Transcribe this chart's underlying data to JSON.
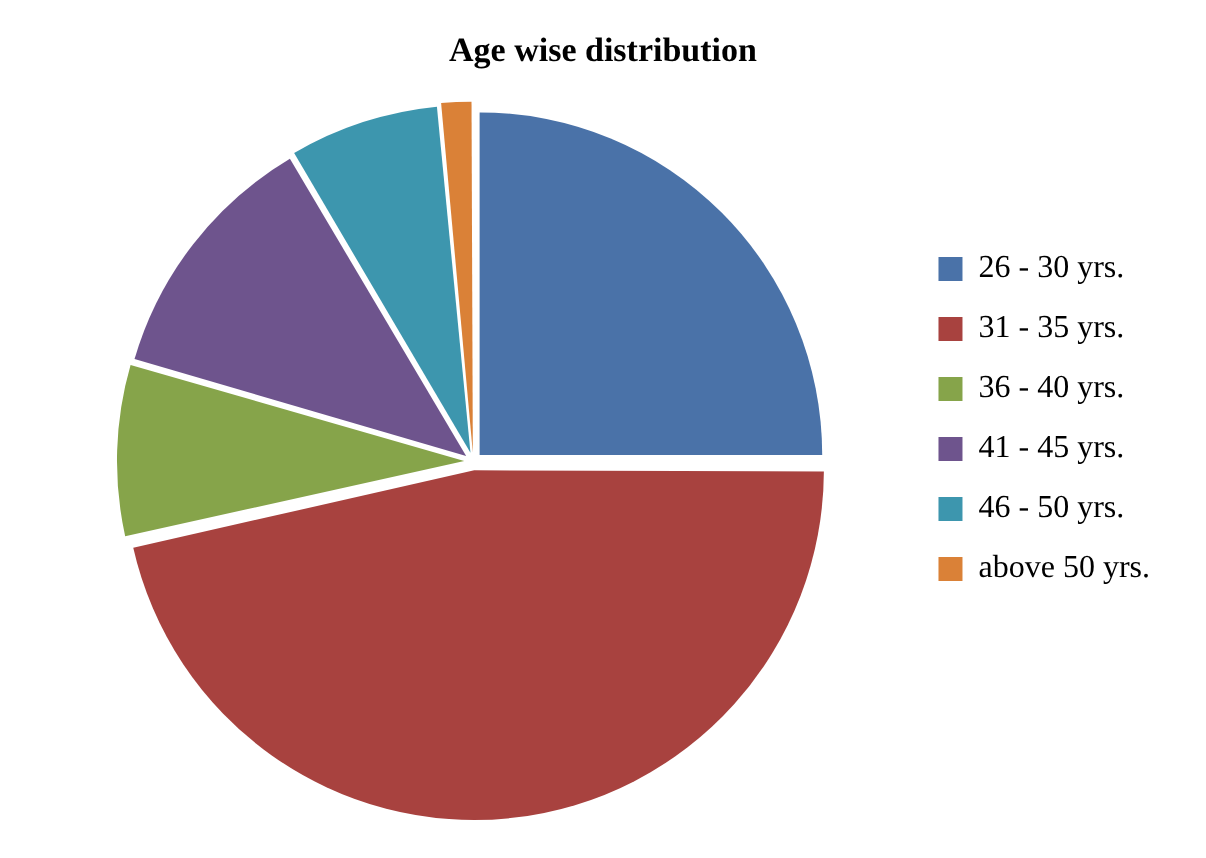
{
  "chart_data": {
    "type": "pie",
    "title": "Age wise distribution",
    "categories": [
      "26 - 30 yrs.",
      "31 - 35 yrs.",
      "36 - 40 yrs.",
      "41 - 45 yrs.",
      "46 - 50 yrs.",
      "above 50 yrs."
    ],
    "values": [
      25,
      46.5,
      8,
      12,
      7,
      1.5
    ],
    "colors": [
      "#4a72a8",
      "#a8423f",
      "#86a44a",
      "#6e548d",
      "#3d96ae",
      "#da8137"
    ],
    "legend": "right"
  }
}
